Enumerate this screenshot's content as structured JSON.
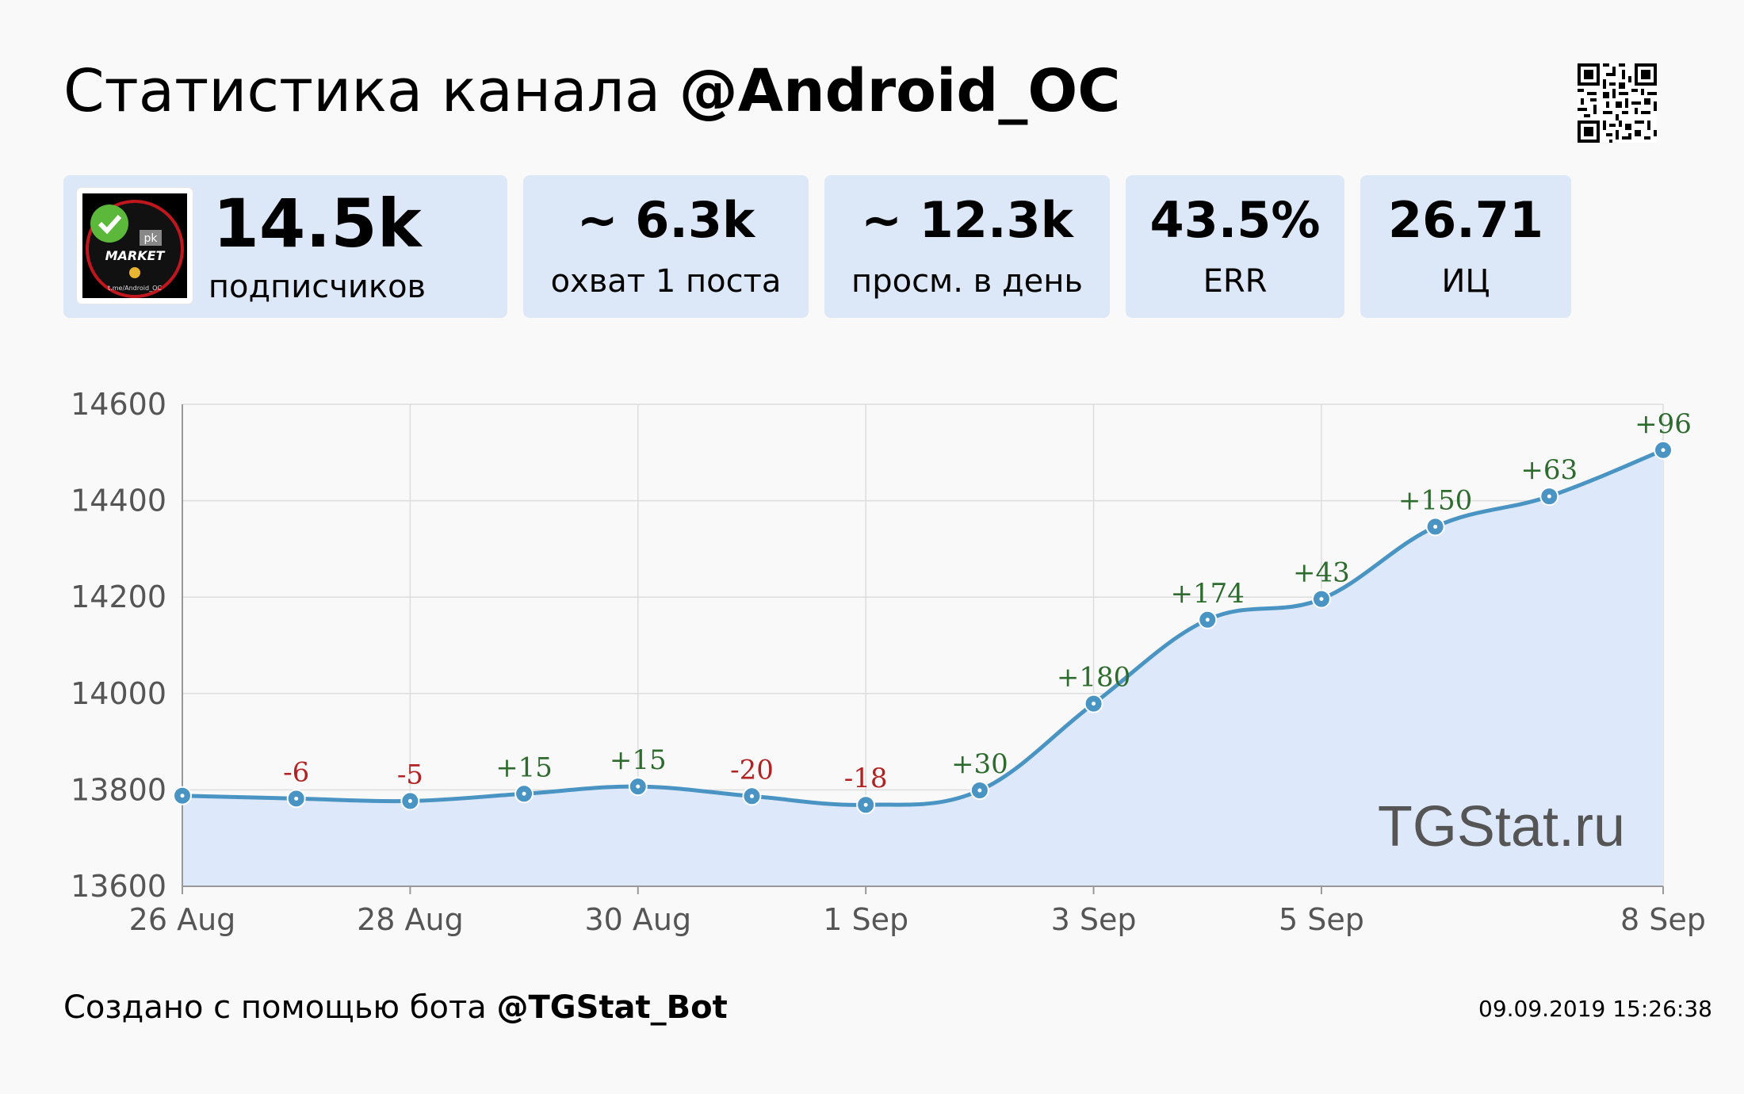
{
  "header": {
    "title_prefix": "Статистика канала",
    "channel": "@Android_OC"
  },
  "stats": [
    {
      "value": "14.5k",
      "label": "подписчиков"
    },
    {
      "value": "~ 6.3k",
      "label": "охват 1 поста"
    },
    {
      "value": "~ 12.3k",
      "label": "просм. в день"
    },
    {
      "value": "43.5%",
      "label": "ERR"
    },
    {
      "value": "26.71",
      "label": "ИЦ"
    }
  ],
  "avatar": {
    "brand": "pk",
    "text": "MARKET",
    "url_text": "t.me/Android_OC"
  },
  "watermark": "TGStat.ru",
  "footer": {
    "prefix": "Создано с помощью бота",
    "bot": "@TGStat_Bot",
    "timestamp": "09.09.2019 15:26:38"
  },
  "colors": {
    "line": "#4a94c4",
    "area": "#dde9fb",
    "positive": "#2e6b2e",
    "negative": "#b22222",
    "card": "#dce8f8"
  },
  "chart_data": {
    "type": "area",
    "title": "",
    "xlabel": "",
    "ylabel": "",
    "ylim": [
      13600,
      14600
    ],
    "yticks": [
      13600,
      13800,
      14000,
      14200,
      14400,
      14600
    ],
    "x_ticks": [
      "26 Aug",
      "28 Aug",
      "30 Aug",
      "1 Sep",
      "3 Sep",
      "5 Sep",
      "8 Sep"
    ],
    "grid": true,
    "series": [
      {
        "x": [
          "2019-08-26",
          "2019-08-27",
          "2019-08-28",
          "2019-08-29",
          "2019-08-30",
          "2019-08-31",
          "2019-09-01",
          "2019-09-02",
          "2019-09-03",
          "2019-09-04",
          "2019-09-05",
          "2019-09-06",
          "2019-09-07",
          "2019-09-08"
        ],
        "values": [
          13788,
          13782,
          13777,
          13792,
          13807,
          13787,
          13769,
          13799,
          13979,
          14153,
          14196,
          14346,
          14409,
          14505
        ],
        "labels": [
          "",
          "-6",
          "-5",
          "+15",
          "+15",
          "-20",
          "-18",
          "+30",
          "+180",
          "+174",
          "+43",
          "+150",
          "+63",
          "+96"
        ]
      }
    ]
  }
}
